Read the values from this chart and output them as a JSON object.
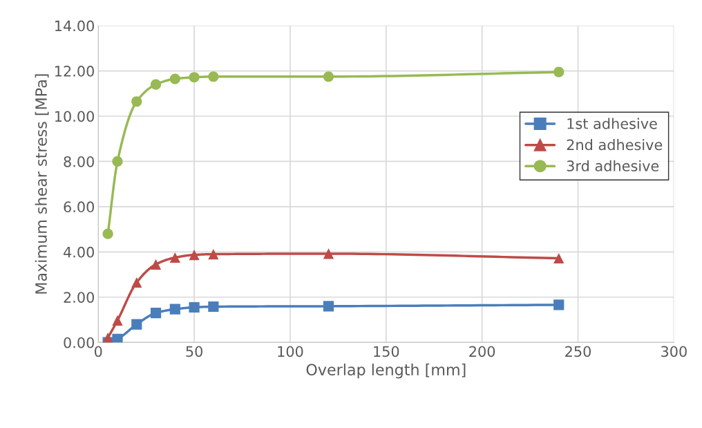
{
  "chart_data": {
    "type": "line",
    "xlabel": "Overlap length [mm]",
    "ylabel": "Maximum shear stress [MPa]",
    "x": [
      5,
      10,
      20,
      30,
      40,
      50,
      60,
      120,
      240
    ],
    "series": [
      {
        "name": "1st adhesive",
        "color": "#4a7ebb",
        "marker": "square",
        "values": [
          0.0,
          0.15,
          0.8,
          1.3,
          1.47,
          1.55,
          1.58,
          1.6,
          1.66
        ]
      },
      {
        "name": "2nd adhesive",
        "color": "#be4b48",
        "marker": "triangle",
        "values": [
          0.2,
          0.97,
          2.65,
          3.45,
          3.75,
          3.87,
          3.9,
          3.92,
          3.72
        ]
      },
      {
        "name": "3rd adhesive",
        "color": "#98b954",
        "marker": "circle",
        "values": [
          4.8,
          8.0,
          10.65,
          11.4,
          11.65,
          11.72,
          11.75,
          11.75,
          11.95
        ]
      }
    ],
    "xlim": [
      0,
      300
    ],
    "xticks": [
      0,
      50,
      100,
      150,
      200,
      250,
      300
    ],
    "ylim": [
      0,
      14
    ],
    "yticks": [
      {
        "value": 0,
        "label": "0.00"
      },
      {
        "value": 2,
        "label": "2.00"
      },
      {
        "value": 4,
        "label": "4.00"
      },
      {
        "value": 6,
        "label": "6.00"
      },
      {
        "value": 8,
        "label": "8.00"
      },
      {
        "value": 10,
        "label": "10.00"
      },
      {
        "value": 12,
        "label": "12.00"
      },
      {
        "value": 14,
        "label": "14.00"
      }
    ],
    "grid": true,
    "legend": "right",
    "line_style": "solid"
  }
}
